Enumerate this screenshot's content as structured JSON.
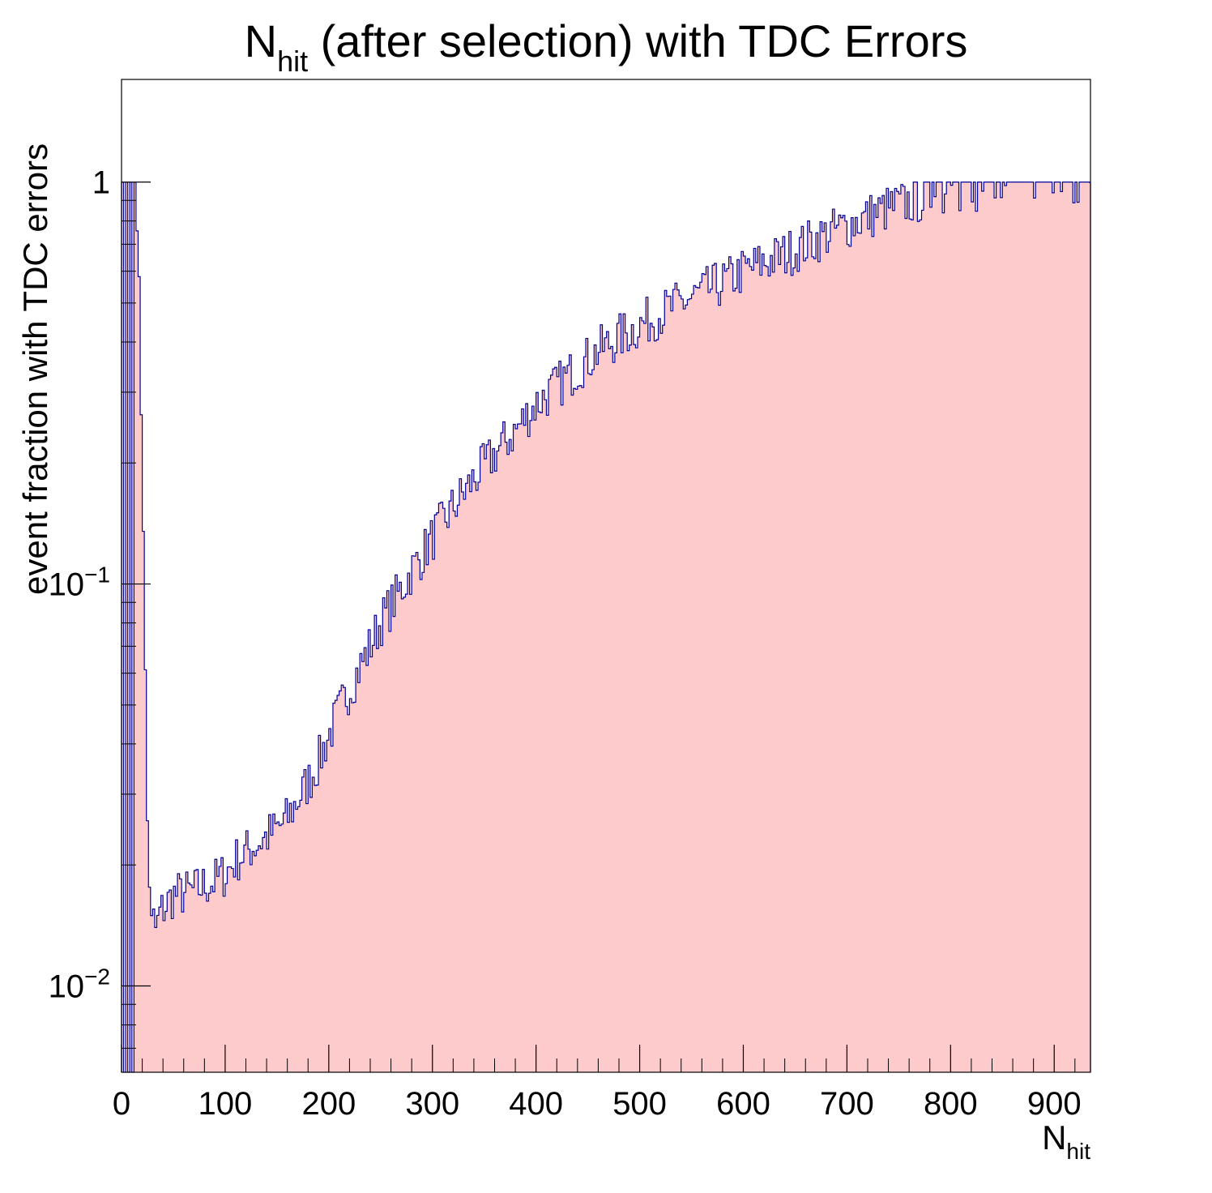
{
  "chart_data": {
    "type": "histogram",
    "title_main": "N",
    "title_sub": "hit",
    "title_rest": " (after selection) with TDC Errors",
    "xlabel_main": "N",
    "xlabel_sub": "hit",
    "ylabel": "event fraction with TDC errors",
    "x_scale": "linear",
    "y_scale": "log",
    "xlim": [
      0,
      935
    ],
    "ylim": [
      0.0061,
      1.8
    ],
    "x_ticks": [
      0,
      100,
      200,
      300,
      400,
      500,
      600,
      700,
      800,
      900
    ],
    "x_tick_labels": [
      "0",
      "100",
      "200",
      "300",
      "400",
      "500",
      "600",
      "700",
      "800",
      "900"
    ],
    "y_ticks": [
      {
        "value": 0.01,
        "base": "10",
        "exp": "−2"
      },
      {
        "value": 0.1,
        "base": "10",
        "exp": "−1"
      },
      {
        "value": 1,
        "base": "1",
        "exp": ""
      }
    ],
    "bin_width": 2,
    "line_color": "#000099",
    "fill_color": "#fdcbcb",
    "grid": false,
    "legend": "none",
    "series": [
      {
        "type": "segments",
        "note_shape": "piecewise envelope of binned fraction vs Nhit",
        "points": [
          [
            0,
            1.0
          ],
          [
            10,
            1.0
          ],
          [
            13,
            1.0
          ],
          [
            16,
            0.7
          ],
          [
            18,
            0.45
          ],
          [
            20,
            0.16
          ],
          [
            22,
            0.12
          ],
          [
            24,
            0.03
          ],
          [
            26,
            0.022
          ],
          [
            28,
            0.0145
          ],
          [
            30,
            0.0148
          ],
          [
            34,
            0.0135
          ],
          [
            36,
            0.015
          ],
          [
            40,
            0.0155
          ],
          [
            50,
            0.0168
          ],
          [
            60,
            0.017
          ],
          [
            70,
            0.0172
          ],
          [
            80,
            0.0178
          ],
          [
            90,
            0.0182
          ],
          [
            100,
            0.019
          ],
          [
            110,
            0.0205
          ],
          [
            120,
            0.0215
          ],
          [
            130,
            0.0225
          ],
          [
            140,
            0.0235
          ],
          [
            150,
            0.0245
          ],
          [
            160,
            0.026
          ],
          [
            170,
            0.029
          ],
          [
            180,
            0.032
          ],
          [
            190,
            0.036
          ],
          [
            200,
            0.042
          ],
          [
            210,
            0.048
          ],
          [
            220,
            0.055
          ],
          [
            230,
            0.062
          ],
          [
            240,
            0.07
          ],
          [
            250,
            0.08
          ],
          [
            260,
            0.088
          ],
          [
            270,
            0.097
          ],
          [
            280,
            0.108
          ],
          [
            290,
            0.118
          ],
          [
            300,
            0.13
          ],
          [
            310,
            0.142
          ],
          [
            320,
            0.155
          ],
          [
            330,
            0.168
          ],
          [
            340,
            0.182
          ],
          [
            350,
            0.196
          ],
          [
            360,
            0.21
          ],
          [
            370,
            0.225
          ],
          [
            380,
            0.24
          ],
          [
            390,
            0.26
          ],
          [
            400,
            0.28
          ],
          [
            420,
            0.31
          ],
          [
            440,
            0.345
          ],
          [
            460,
            0.38
          ],
          [
            480,
            0.41
          ],
          [
            500,
            0.44
          ],
          [
            520,
            0.47
          ],
          [
            540,
            0.5
          ],
          [
            560,
            0.53
          ],
          [
            580,
            0.56
          ],
          [
            600,
            0.6
          ],
          [
            620,
            0.63
          ],
          [
            640,
            0.66
          ],
          [
            660,
            0.7
          ],
          [
            680,
            0.74
          ],
          [
            700,
            0.78
          ],
          [
            720,
            0.82
          ],
          [
            740,
            0.86
          ],
          [
            760,
            0.89
          ],
          [
            780,
            0.92
          ],
          [
            800,
            0.95
          ],
          [
            820,
            0.97
          ],
          [
            840,
            0.98
          ],
          [
            860,
            0.98
          ],
          [
            880,
            0.99
          ],
          [
            900,
            0.99
          ],
          [
            935,
            1.0
          ]
        ]
      }
    ]
  }
}
